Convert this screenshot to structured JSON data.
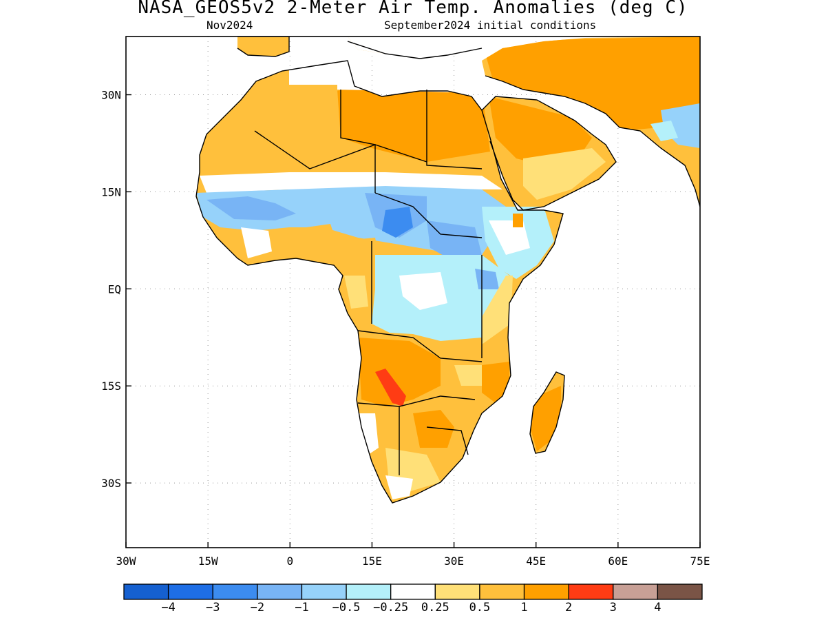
{
  "header": {
    "title": "NASA_GEOS5v2 2-Meter Air Temp. Anomalies (deg C)",
    "valid_month": "Nov2024",
    "init_conditions": "September2024 initial conditions"
  },
  "map": {
    "region": "Africa and Middle East",
    "projection": "lat-lon",
    "lon_range": [
      -30,
      75
    ],
    "lat_range": [
      -40,
      39
    ],
    "x_ticks": [
      {
        "lon": -30,
        "label": "30W"
      },
      {
        "lon": -15,
        "label": "15W"
      },
      {
        "lon": 0,
        "label": "0"
      },
      {
        "lon": 15,
        "label": "15E"
      },
      {
        "lon": 30,
        "label": "30E"
      },
      {
        "lon": 45,
        "label": "45E"
      },
      {
        "lon": 60,
        "label": "60E"
      },
      {
        "lon": 75,
        "label": "75E"
      }
    ],
    "y_ticks": [
      {
        "lat": 30,
        "label": "30N"
      },
      {
        "lat": 15,
        "label": "15N"
      },
      {
        "lat": 0,
        "label": "EQ"
      },
      {
        "lat": -15,
        "label": "15S"
      },
      {
        "lat": -30,
        "label": "30S"
      }
    ],
    "grid": "dotted",
    "anomaly_regions": [
      {
        "area": "North Africa / Sahara",
        "lon": [
          -12,
          32
        ],
        "lat": [
          18,
          35
        ],
        "class": "1 to 2"
      },
      {
        "area": "Arabian Peninsula / Middle East",
        "lon": [
          33,
          75
        ],
        "lat": [
          20,
          39
        ],
        "class": "1 to 2"
      },
      {
        "area": "Sahel",
        "lon": [
          -17,
          35
        ],
        "lat": [
          9,
          16
        ],
        "class": "-1 to -0.5"
      },
      {
        "area": "Central Chad / Sudan",
        "lon": [
          16,
          22
        ],
        "lat": [
          10,
          13
        ],
        "class": "-2 to -1"
      },
      {
        "area": "Horn of Africa / East Africa",
        "lon": [
          28,
          48
        ],
        "lat": [
          -5,
          10
        ],
        "class": "-0.5 to -0.25"
      },
      {
        "area": "Southern Africa",
        "lon": [
          12,
          36
        ],
        "lat": [
          -28,
          -8
        ],
        "class": "1 to 2"
      },
      {
        "area": "Namibia / Angola border",
        "lon": [
          16,
          20
        ],
        "lat": [
          -18,
          -14
        ],
        "class": "2 to 3"
      },
      {
        "area": "Madagascar",
        "lon": [
          44,
          50
        ],
        "lat": [
          -25,
          -13
        ],
        "class": "1 to 2"
      },
      {
        "area": "Pakistan / NW India",
        "lon": [
          68,
          75
        ],
        "lat": [
          22,
          28
        ],
        "class": "-0.5 to -0.25"
      }
    ]
  },
  "colorbar": {
    "bins": [
      {
        "range": "< -4",
        "color": "#1560d0"
      },
      {
        "range": "-4 to -3",
        "color": "#1e6ee6"
      },
      {
        "range": "-3 to -2",
        "color": "#3c8cf0"
      },
      {
        "range": "-2 to -1",
        "color": "#78b4f5"
      },
      {
        "range": "-1 to -0.5",
        "color": "#96d2fa"
      },
      {
        "range": "-0.5 to -0.25",
        "color": "#b4f0fa"
      },
      {
        "range": "-0.25 to 0.25",
        "color": "#ffffff"
      },
      {
        "range": "0.25 to 0.5",
        "color": "#ffe078"
      },
      {
        "range": "0.5 to 1",
        "color": "#ffc03c"
      },
      {
        "range": "1 to 2",
        "color": "#ffa000"
      },
      {
        "range": "2 to 3",
        "color": "#ff3c14"
      },
      {
        "range": "3 to 4",
        "color": "#c8a096"
      },
      {
        "range": "> 4",
        "color": "#7a5446"
      }
    ],
    "labels": [
      "-4",
      "-3",
      "-2",
      "-1",
      "-0.5",
      "-0.25",
      "0.25",
      "0.5",
      "1",
      "2",
      "3",
      "4"
    ],
    "unit": "deg C"
  },
  "colors": {
    "land_outline": "#000000",
    "ocean": "#ffffff",
    "grid": "#999999"
  }
}
